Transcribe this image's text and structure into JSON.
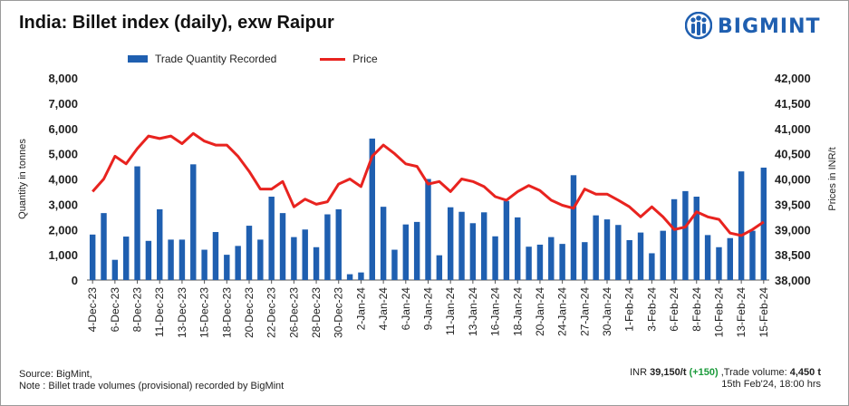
{
  "title": "India: Billet index (daily), exw Raipur",
  "logo": {
    "text": "BIGMINT",
    "icon": "bigmint-people-icon",
    "color": "#1f5fb0"
  },
  "legend": {
    "bars": "Trade Quantity Recorded",
    "line": "Price"
  },
  "colors": {
    "bar": "#1f5fb0",
    "line": "#e8231f",
    "change": "#1a9a3a"
  },
  "chart_data": {
    "type": "bar+line",
    "title": "India: Billet index (daily), exw Raipur",
    "ylabel_left": "Quantity in tonnes",
    "ylabel_right": "Prices in INR/t",
    "ylim_left": [
      0,
      8000
    ],
    "ylim_right": [
      38000,
      42000
    ],
    "left_ticks": [
      "0",
      "1,000",
      "2,000",
      "3,000",
      "4,000",
      "5,000",
      "6,000",
      "7,000",
      "8,000"
    ],
    "right_ticks": [
      "38,000",
      "38,500",
      "39,000",
      "39,500",
      "40,000",
      "40,500",
      "41,000",
      "41,500",
      "42,000"
    ],
    "x_tick_labels": [
      "4-Dec-23",
      "6-Dec-23",
      "8-Dec-23",
      "11-Dec-23",
      "13-Dec-23",
      "15-Dec-23",
      "18-Dec-23",
      "20-Dec-23",
      "22-Dec-23",
      "26-Dec-23",
      "28-Dec-23",
      "30-Dec-23",
      "2-Jan-24",
      "4-Jan-24",
      "6-Jan-24",
      "9-Jan-24",
      "11-Jan-24",
      "13-Jan-24",
      "16-Jan-24",
      "18-Jan-24",
      "20-Jan-24",
      "24-Jan-24",
      "27-Jan-24",
      "30-Jan-24",
      "1-Feb-24",
      "3-Feb-24",
      "6-Feb-24",
      "8-Feb-24",
      "10-Feb-24",
      "13-Feb-24",
      "15-Feb-24"
    ],
    "series": [
      {
        "name": "Trade Quantity Recorded",
        "kind": "bar",
        "axis": "left",
        "values": [
          1800,
          2650,
          800,
          1720,
          4500,
          1550,
          2800,
          1600,
          1600,
          4580,
          1200,
          1900,
          1000,
          1350,
          2150,
          1600,
          3300,
          2650,
          1700,
          2000,
          1300,
          2600,
          2800,
          230,
          300,
          5600,
          2900,
          1200,
          2200,
          2300,
          4000,
          980,
          2880,
          2700,
          2250,
          2680,
          1730,
          3130,
          2480,
          1320,
          1400,
          1700,
          1430,
          4150,
          1500,
          2560,
          2400,
          2180,
          1580,
          1880,
          1060,
          1950,
          3200,
          3520,
          3300,
          1780,
          1300,
          1660,
          4300,
          1950,
          4450
        ]
      },
      {
        "name": "Price",
        "kind": "line",
        "axis": "right",
        "values": [
          39750,
          40000,
          40450,
          40300,
          40600,
          40850,
          40800,
          40850,
          40700,
          40900,
          40750,
          40670,
          40670,
          40450,
          40150,
          39800,
          39800,
          39950,
          39450,
          39600,
          39500,
          39550,
          39900,
          40000,
          39850,
          40450,
          40670,
          40500,
          40300,
          40250,
          39900,
          39950,
          39750,
          40000,
          39950,
          39850,
          39650,
          39580,
          39750,
          39870,
          39770,
          39580,
          39480,
          39420,
          39800,
          39700,
          39700,
          39580,
          39450,
          39250,
          39450,
          39250,
          39000,
          39050,
          39350,
          39250,
          39200,
          38930,
          38880,
          39000,
          39150
        ]
      }
    ]
  },
  "footer": {
    "source": "Source: BigMint,",
    "note": "Note : Billet trade volumes (provisional) recorded by BigMint",
    "price_prefix": "INR ",
    "price_value": "39,150/t",
    "change": "(+150)",
    "volume_prefix": " ,Trade volume: ",
    "volume_value": "4,450 t",
    "timestamp": "15th Feb'24, 18:00 hrs"
  }
}
